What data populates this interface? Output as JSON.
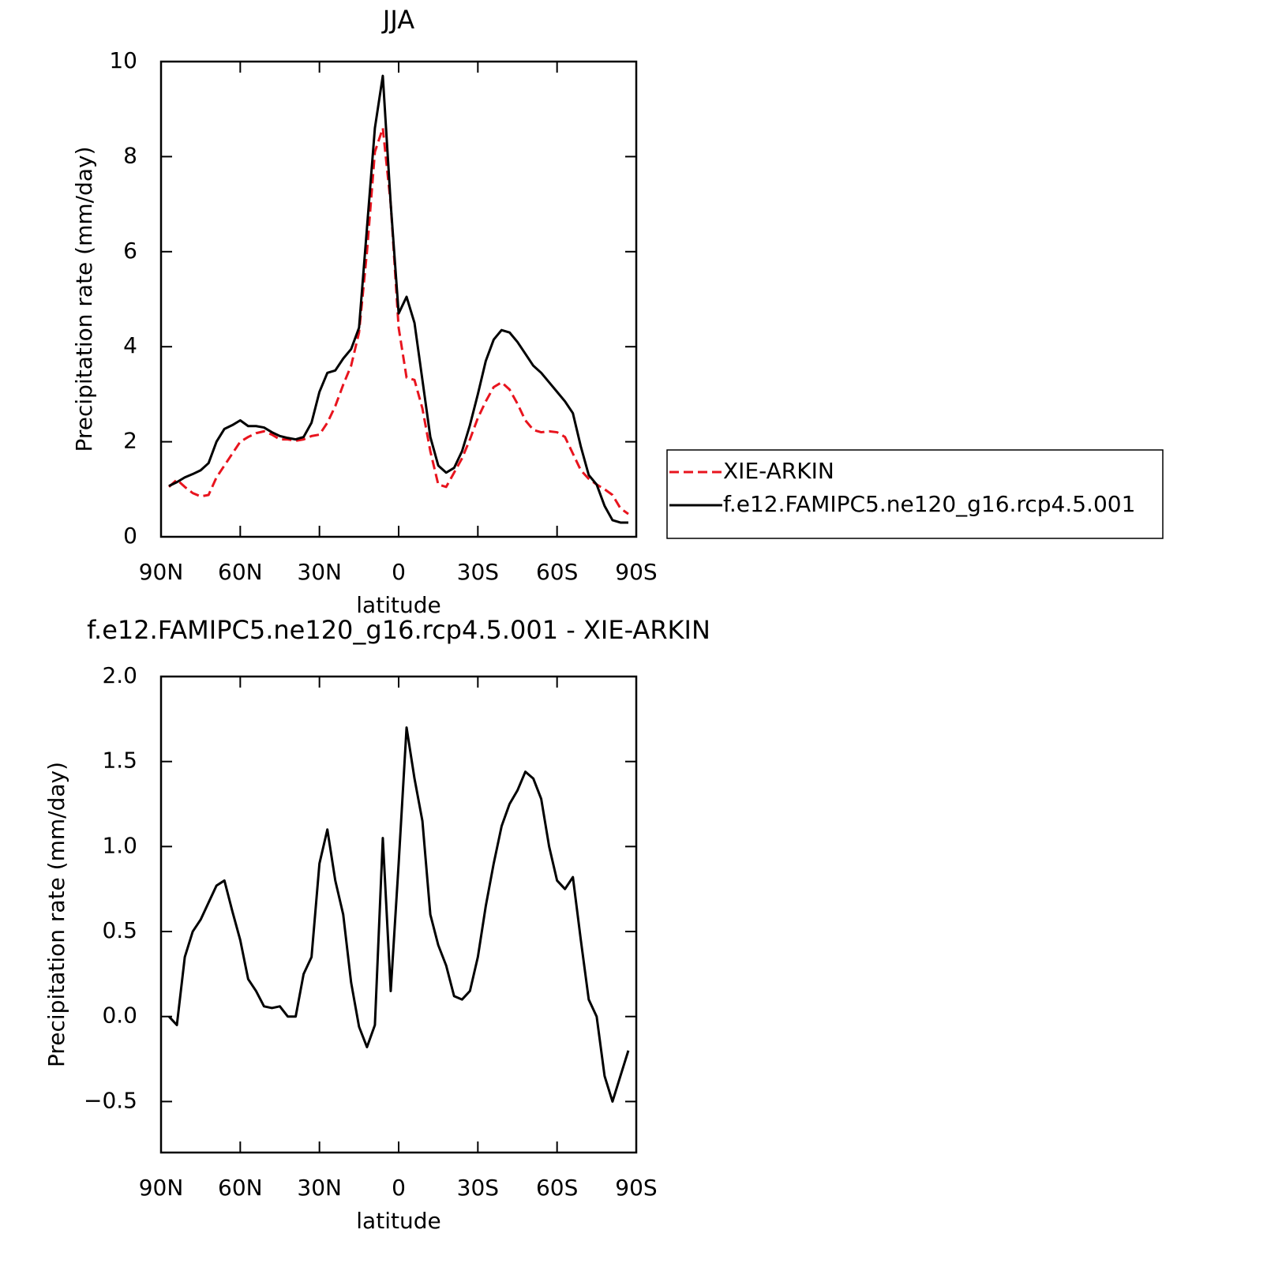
{
  "chart_data": [
    {
      "type": "line",
      "title": "JJA",
      "xlabel": "latitude",
      "ylabel": "Precipitation rate (mm/day)",
      "x": [
        87,
        84,
        81,
        78,
        75,
        72,
        69,
        66,
        63,
        60,
        57,
        54,
        51,
        48,
        45,
        42,
        39,
        36,
        33,
        30,
        27,
        24,
        21,
        18,
        15,
        12,
        9,
        6,
        3,
        0,
        -3,
        -6,
        -9,
        -12,
        -15,
        -18,
        -21,
        -24,
        -27,
        -30,
        -33,
        -36,
        -39,
        -42,
        -45,
        -48,
        -51,
        -54,
        -57,
        -60,
        -63,
        -66,
        -69,
        -72,
        -75,
        -78,
        -81,
        -84,
        -87
      ],
      "xlim": [
        90,
        -90
      ],
      "xticks": [
        {
          "value": 90,
          "label": "90N"
        },
        {
          "value": 60,
          "label": "60N"
        },
        {
          "value": 30,
          "label": "30N"
        },
        0,
        {
          "value": -30,
          "label": "30S"
        },
        {
          "value": -60,
          "label": "60S"
        },
        {
          "value": -90,
          "label": "90S"
        }
      ],
      "ylim": [
        0,
        10
      ],
      "yticks": [
        0,
        2,
        4,
        6,
        8,
        10
      ],
      "legend": "right",
      "series": [
        {
          "name": "XIE-ARKIN",
          "color": "#e8141e",
          "linestyle": "dashed",
          "values": [
            1.05,
            1.2,
            1.05,
            0.92,
            0.85,
            0.88,
            1.25,
            1.5,
            1.75,
            2.0,
            2.1,
            2.18,
            2.22,
            2.15,
            2.05,
            2.05,
            2.02,
            2.05,
            2.12,
            2.15,
            2.4,
            2.75,
            3.2,
            3.6,
            4.3,
            6.0,
            8.1,
            8.6,
            7.0,
            4.4,
            3.35,
            3.3,
            2.7,
            1.8,
            1.1,
            1.05,
            1.35,
            1.65,
            2.05,
            2.5,
            2.85,
            3.15,
            3.25,
            3.1,
            2.8,
            2.45,
            2.25,
            2.2,
            2.22,
            2.2,
            2.1,
            1.75,
            1.4,
            1.22,
            1.1,
            1.0,
            0.88,
            0.6,
            0.48
          ]
        },
        {
          "name": "f.e12.FAMIPC5.ne120_g16.rcp4.5.001",
          "color": "#000000",
          "linestyle": "solid",
          "values": [
            1.07,
            1.15,
            1.25,
            1.32,
            1.4,
            1.55,
            2.0,
            2.27,
            2.35,
            2.45,
            2.33,
            2.33,
            2.3,
            2.2,
            2.12,
            2.08,
            2.05,
            2.1,
            2.4,
            3.05,
            3.45,
            3.5,
            3.75,
            3.95,
            4.4,
            6.5,
            8.6,
            9.7,
            7.0,
            4.7,
            5.05,
            4.5,
            3.3,
            2.1,
            1.5,
            1.35,
            1.45,
            1.8,
            2.35,
            3.0,
            3.7,
            4.15,
            4.35,
            4.3,
            4.1,
            3.85,
            3.6,
            3.45,
            3.25,
            3.05,
            2.85,
            2.6,
            1.9,
            1.3,
            1.1,
            0.65,
            0.35,
            0.3,
            0.3
          ]
        }
      ]
    },
    {
      "type": "line",
      "title": "f.e12.FAMIPC5.ne120_g16.rcp4.5.001 - XIE-ARKIN",
      "xlabel": "latitude",
      "ylabel": "Precipitation rate (mm/day)",
      "x": [
        87,
        84,
        81,
        78,
        75,
        72,
        69,
        66,
        63,
        60,
        57,
        54,
        51,
        48,
        45,
        42,
        39,
        36,
        33,
        30,
        27,
        24,
        21,
        18,
        15,
        12,
        9,
        6,
        3,
        0,
        -3,
        -6,
        -9,
        -12,
        -15,
        -18,
        -21,
        -24,
        -27,
        -30,
        -33,
        -36,
        -39,
        -42,
        -45,
        -48,
        -51,
        -54,
        -57,
        -60,
        -63,
        -66,
        -69,
        -72,
        -75,
        -78,
        -81,
        -84,
        -87
      ],
      "xlim": [
        90,
        -90
      ],
      "xticks": [
        {
          "value": 90,
          "label": "90N"
        },
        {
          "value": 60,
          "label": "60N"
        },
        {
          "value": 30,
          "label": "30N"
        },
        0,
        {
          "value": -30,
          "label": "30S"
        },
        {
          "value": -60,
          "label": "60S"
        },
        {
          "value": -90,
          "label": "90S"
        }
      ],
      "ylim": [
        -0.8,
        2.0
      ],
      "yticks": [
        {
          "value": 2.0,
          "label": "2.0"
        },
        1.5,
        {
          "value": 1.0,
          "label": "1.0"
        },
        0.5,
        {
          "value": 0.0,
          "label": "0.0"
        },
        {
          "value": -0.5,
          "label": "−0.5"
        }
      ],
      "series": [
        {
          "color": "#000000",
          "linestyle": "solid",
          "values": [
            0.0,
            -0.05,
            0.35,
            0.5,
            0.57,
            0.67,
            0.77,
            0.8,
            0.62,
            0.45,
            0.22,
            0.15,
            0.06,
            0.05,
            0.06,
            0.0,
            0.0,
            0.25,
            0.35,
            0.9,
            1.1,
            0.8,
            0.6,
            0.2,
            -0.06,
            -0.18,
            -0.05,
            1.05,
            0.15,
            0.9,
            1.7,
            1.4,
            1.15,
            0.6,
            0.42,
            0.3,
            0.12,
            0.1,
            0.15,
            0.35,
            0.65,
            0.9,
            1.12,
            1.25,
            1.33,
            1.44,
            1.4,
            1.28,
            1.0,
            0.8,
            0.75,
            0.82,
            0.45,
            0.1,
            0.0,
            -0.35,
            -0.5,
            -0.35,
            -0.2
          ]
        }
      ]
    }
  ]
}
